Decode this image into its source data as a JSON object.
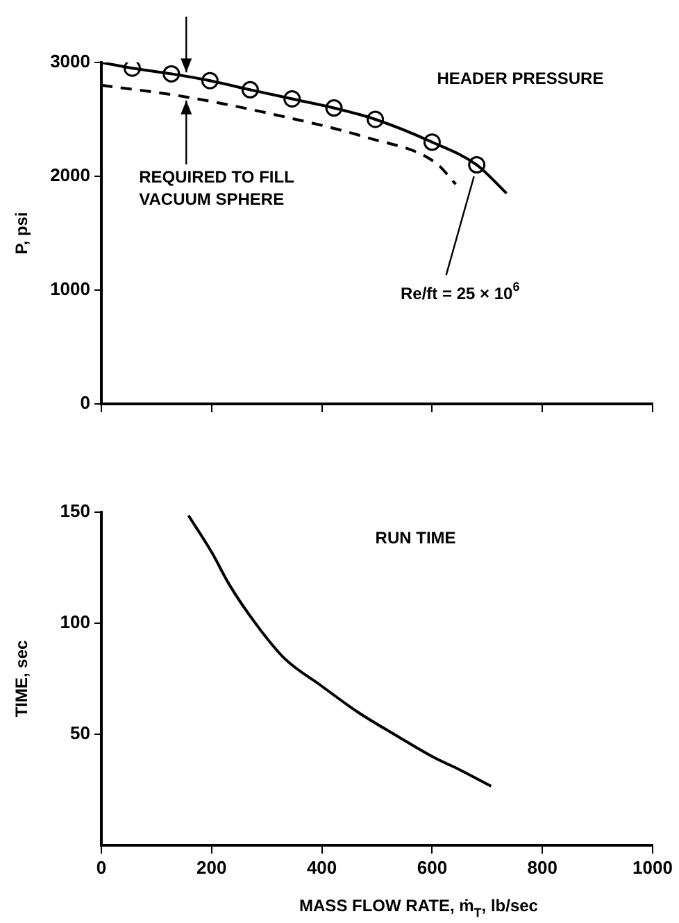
{
  "chart_data": [
    {
      "type": "line",
      "title": "HEADER PRESSURE",
      "ylabel": "P, psi",
      "xlim": [
        0,
        1000
      ],
      "xticks": [
        0,
        200,
        400,
        600,
        800,
        1000
      ],
      "ylim": [
        0,
        3000
      ],
      "yticks": [
        0,
        1000,
        2000,
        3000
      ],
      "tick_labels": "y",
      "series": [
        {
          "color": "#000000",
          "marker": "none",
          "line_style": "solid",
          "x": [
            0,
            56,
            127,
            197,
            270,
            346,
            422,
            497,
            600,
            681,
            735
          ],
          "values": [
            3000,
            2950,
            2900,
            2840,
            2760,
            2680,
            2600,
            2500,
            2300,
            2100,
            1850
          ]
        },
        {
          "color": "#000000",
          "marker": "none",
          "line_style": "dashed",
          "x": [
            0,
            150,
            316,
            482,
            606,
            643
          ],
          "values": [
            2800,
            2700,
            2540,
            2340,
            2120,
            1930
          ]
        },
        {
          "type": "scatter",
          "color": "#000000",
          "marker": "circle",
          "x": [
            56,
            127,
            197,
            270,
            346,
            422,
            497,
            600,
            681
          ],
          "values": [
            2950,
            2900,
            2840,
            2760,
            2680,
            2600,
            2500,
            2300,
            2100
          ]
        }
      ],
      "annotations": [
        {
          "text": "REQUIRED TO FILL VACUUM SPHERE",
          "x": 154,
          "y": 2690
        },
        {
          "text": "Re/ft = 25 × 10$^{6}$",
          "x": 681,
          "y": 2085
        }
      ]
    },
    {
      "type": "line",
      "title": "RUN TIME",
      "xlabel": "MASS FLOW RATE, ṁ$_{T}$, lb/sec",
      "ylabel": "TIME, sec",
      "xlim": [
        0,
        1000
      ],
      "xticks": [
        0,
        200,
        400,
        600,
        800,
        1000
      ],
      "ylim": [
        0,
        150
      ],
      "yticks": [
        50,
        100,
        150
      ],
      "series": [
        {
          "color": "#000000",
          "marker": "none",
          "line_style": "solid",
          "x": [
            158,
            200,
            233,
            283,
            332,
            399,
            465,
            531,
            606,
            647,
            707
          ],
          "values": [
            148.5,
            132,
            117,
            98.8,
            84.2,
            71.8,
            60,
            50,
            39.2,
            34.4,
            26.6
          ]
        }
      ]
    }
  ]
}
